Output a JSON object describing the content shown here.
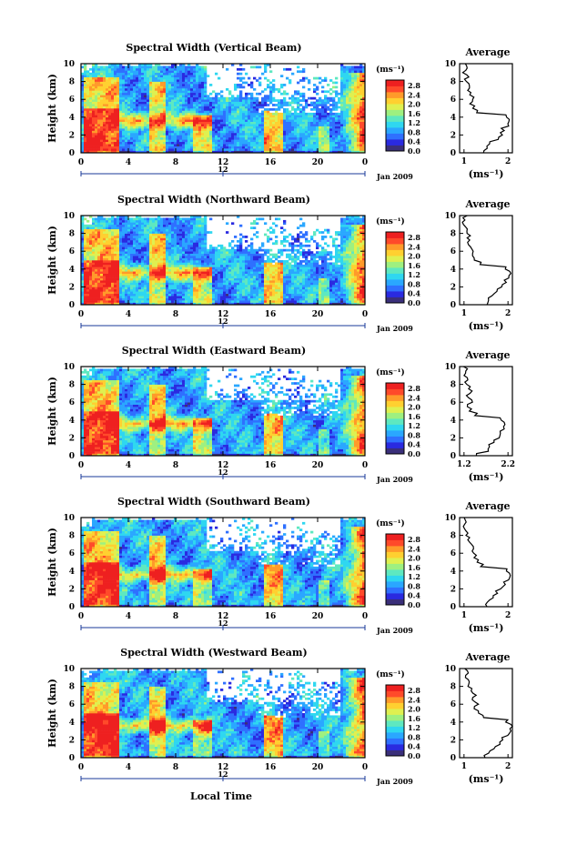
{
  "figure": {
    "xlabel": "Local Time",
    "date_label": "Jan 2009",
    "colorbar_unit": "(ms⁻¹)",
    "colorbar_ticks": [
      "2.8",
      "2.4",
      "2.0",
      "1.6",
      "1.2",
      "0.8",
      "0.4",
      "0.0"
    ],
    "average_title": "Average",
    "average_xlabel": "(ms⁻¹)",
    "ylabel": "Height (km)",
    "ribbon_label": "12"
  },
  "colors": {
    "scale": [
      "#3a2f7a",
      "#2a2ae0",
      "#2f70ff",
      "#2aa7ff",
      "#2fd7f0",
      "#5ee8c0",
      "#9ef080",
      "#dff050",
      "#ffd030",
      "#ff9a2a",
      "#ff4a2a",
      "#ee2020"
    ],
    "frame": "#000000",
    "ribbon": "#1a3a9a"
  },
  "chart_data": [
    {
      "type": "heatmap",
      "title": "Spectral Width (Vertical Beam)",
      "xlabel": "Local Time",
      "ylabel": "Height (km)",
      "xlim": [
        0,
        24
      ],
      "ylim": [
        0,
        10
      ],
      "xticks": [
        "0",
        "4",
        "8",
        "12",
        "16",
        "20",
        "0"
      ],
      "yticks": [
        "0",
        "2",
        "4",
        "6",
        "8",
        "10"
      ],
      "colorbar": {
        "label": "(ms⁻¹)",
        "range": [
          0.0,
          2.8
        ],
        "ticks": [
          "2.8",
          "2.4",
          "2.0",
          "1.6",
          "1.2",
          "0.8",
          "0.4",
          "0.0"
        ]
      },
      "average_profile": {
        "title": "Average",
        "xlabel": "(ms⁻¹)",
        "xticks": [
          "1",
          "2"
        ],
        "xlim": [
          0.9,
          2.1
        ],
        "heights": [
          0,
          0.5,
          1,
          1.5,
          2,
          2.5,
          3,
          3.5,
          4,
          4.5,
          5,
          5.5,
          6,
          6.5,
          7,
          7.5,
          8,
          8.5,
          9,
          9.5,
          10
        ],
        "values": [
          1.45,
          1.5,
          1.6,
          1.75,
          1.85,
          1.9,
          2.0,
          2.05,
          1.95,
          1.3,
          1.2,
          1.15,
          1.2,
          1.15,
          1.1,
          1.15,
          1.05,
          1.1,
          1.0,
          1.05,
          1.0
        ]
      }
    },
    {
      "type": "heatmap",
      "title": "Spectral Width (Northward Beam)",
      "xlabel": "Local Time",
      "ylabel": "Height (km)",
      "xlim": [
        0,
        24
      ],
      "ylim": [
        0,
        10
      ],
      "xticks": [
        "0",
        "4",
        "8",
        "12",
        "16",
        "20",
        "0"
      ],
      "yticks": [
        "0",
        "2",
        "4",
        "6",
        "8",
        "10"
      ],
      "colorbar": {
        "label": "(ms⁻¹)",
        "range": [
          0.0,
          2.8
        ],
        "ticks": [
          "2.8",
          "2.4",
          "2.0",
          "1.6",
          "1.2",
          "0.8",
          "0.4",
          "0.0"
        ]
      },
      "average_profile": {
        "title": "Average",
        "xlabel": "(ms⁻¹)",
        "xticks": [
          "1",
          "2"
        ],
        "xlim": [
          0.9,
          2.1
        ],
        "heights": [
          0,
          0.5,
          1,
          1.5,
          2,
          2.5,
          3,
          3.5,
          4,
          4.5,
          5,
          5.5,
          6,
          6.5,
          7,
          7.5,
          8,
          8.5,
          9,
          9.5,
          10
        ],
        "values": [
          1.5,
          1.55,
          1.65,
          1.75,
          1.85,
          1.95,
          2.0,
          2.05,
          1.95,
          1.35,
          1.25,
          1.2,
          1.2,
          1.15,
          1.1,
          1.1,
          1.05,
          1.05,
          1.0,
          1.0,
          1.05
        ]
      }
    },
    {
      "type": "heatmap",
      "title": "Spectral Width (Eastward Beam)",
      "xlabel": "Local Time",
      "ylabel": "Height (km)",
      "xlim": [
        0,
        24
      ],
      "ylim": [
        0,
        10
      ],
      "xticks": [
        "0",
        "4",
        "8",
        "12",
        "16",
        "20",
        "0"
      ],
      "yticks": [
        "0",
        "2",
        "4",
        "6",
        "8",
        "10"
      ],
      "colorbar": {
        "label": "(ms⁻¹)",
        "range": [
          0.0,
          2.8
        ],
        "ticks": [
          "2.8",
          "2.4",
          "2.0",
          "1.6",
          "1.2",
          "0.8",
          "0.4",
          "0.0"
        ]
      },
      "average_profile": {
        "title": "Average",
        "xlabel": "(ms⁻¹)",
        "xticks": [
          "1.2",
          "2.2"
        ],
        "xlim": [
          1.1,
          2.3
        ],
        "heights": [
          0,
          0.5,
          1,
          1.5,
          2,
          2.5,
          3,
          3.5,
          4,
          4.5,
          5,
          5.5,
          6,
          6.5,
          7,
          7.5,
          8,
          8.5,
          9,
          9.5,
          10
        ],
        "values": [
          1.5,
          1.75,
          1.8,
          1.9,
          2.0,
          2.05,
          2.1,
          2.15,
          2.05,
          1.45,
          1.35,
          1.3,
          1.4,
          1.3,
          1.35,
          1.3,
          1.25,
          1.3,
          1.2,
          1.25,
          1.2
        ]
      }
    },
    {
      "type": "heatmap",
      "title": "Spectral Width (Southward Beam)",
      "xlabel": "Local Time",
      "ylabel": "Height (km)",
      "xlim": [
        0,
        24
      ],
      "ylim": [
        0,
        10
      ],
      "xticks": [
        "0",
        "4",
        "8",
        "12",
        "16",
        "20",
        "0"
      ],
      "yticks": [
        "0",
        "2",
        "4",
        "6",
        "8",
        "10"
      ],
      "colorbar": {
        "label": "(ms⁻¹)",
        "range": [
          0.0,
          2.8
        ],
        "ticks": [
          "2.8",
          "2.4",
          "2.0",
          "1.6",
          "1.2",
          "0.8",
          "0.4",
          "0.0"
        ]
      },
      "average_profile": {
        "title": "Average",
        "xlabel": "(ms⁻¹)",
        "xticks": [
          "1",
          "2"
        ],
        "xlim": [
          0.9,
          2.1
        ],
        "heights": [
          0,
          0.5,
          1,
          1.5,
          2,
          2.5,
          3,
          3.5,
          4,
          4.5,
          5,
          5.5,
          6,
          6.5,
          7,
          7.5,
          8,
          8.5,
          9,
          9.5,
          10
        ],
        "values": [
          1.5,
          1.55,
          1.65,
          1.75,
          1.85,
          1.95,
          2.0,
          2.05,
          1.95,
          1.4,
          1.3,
          1.25,
          1.2,
          1.2,
          1.15,
          1.1,
          1.05,
          1.05,
          1.0,
          1.05,
          1.0
        ]
      }
    },
    {
      "type": "heatmap",
      "title": "Spectral Width (Westward Beam)",
      "xlabel": "Local Time",
      "ylabel": "Height (km)",
      "xlim": [
        0,
        24
      ],
      "ylim": [
        0,
        10
      ],
      "xticks": [
        "0",
        "4",
        "8",
        "12",
        "16",
        "20",
        "0"
      ],
      "yticks": [
        "0",
        "2",
        "4",
        "6",
        "8",
        "10"
      ],
      "colorbar": {
        "label": "(ms⁻¹)",
        "range": [
          0.0,
          2.8
        ],
        "ticks": [
          "2.8",
          "2.4",
          "2.0",
          "1.6",
          "1.2",
          "0.8",
          "0.4",
          "0.0"
        ]
      },
      "average_profile": {
        "title": "Average",
        "xlabel": "(ms⁻¹)",
        "xticks": [
          "1",
          "2"
        ],
        "xlim": [
          0.9,
          2.1
        ],
        "heights": [
          0,
          0.5,
          1,
          1.5,
          2,
          2.5,
          3,
          3.5,
          4,
          4.5,
          5,
          5.5,
          6,
          6.5,
          7,
          7.5,
          8,
          8.5,
          9,
          9.5,
          10
        ],
        "values": [
          1.5,
          1.55,
          1.7,
          1.8,
          1.9,
          2.0,
          2.05,
          2.1,
          1.95,
          1.45,
          1.3,
          1.25,
          1.3,
          1.2,
          1.25,
          1.15,
          1.1,
          1.15,
          1.05,
          1.1,
          1.0
        ]
      }
    }
  ]
}
